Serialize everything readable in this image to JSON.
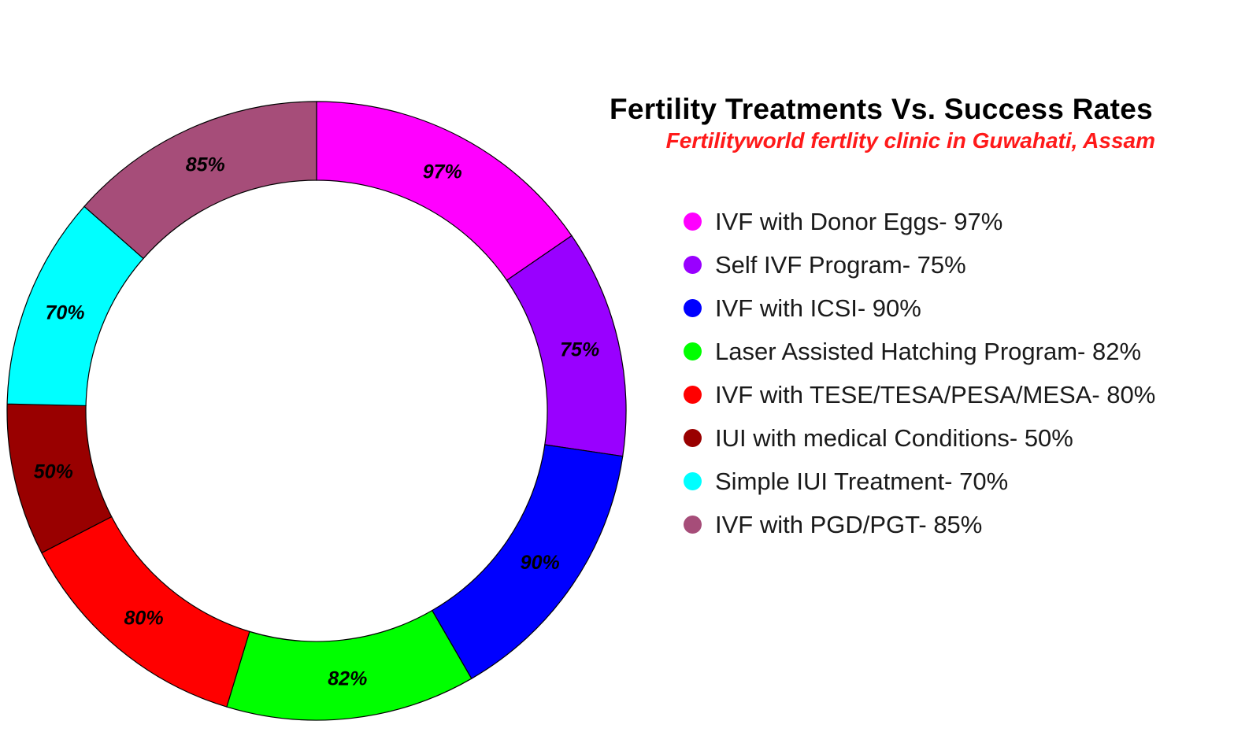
{
  "chart_data": {
    "type": "pie",
    "donut": true,
    "title": "Fertility Treatments Vs. Success Rates",
    "subtitle": "Fertilityworld fertlity clinic in Guwahati, Assam",
    "legend_position": "right",
    "categories": [
      "IVF with Donor Eggs",
      "Self IVF Program",
      "IVF with ICSI",
      "Laser Assisted Hatching Program",
      "IVF with TESE/TESA/PESA/MESA",
      "IUI with medical Conditions",
      "Simple IUI Treatment",
      "IVF with PGD/PGT"
    ],
    "values": [
      97,
      75,
      90,
      82,
      80,
      50,
      70,
      85
    ],
    "data_labels": [
      "97%",
      "75%",
      "90%",
      "82%",
      "80%",
      "50%",
      "70%",
      "85%"
    ],
    "legend_labels": [
      "IVF with Donor Eggs- 97%",
      "Self IVF Program- 75%",
      "IVF with ICSI- 90%",
      "Laser Assisted Hatching Program- 82%",
      "IVF with TESE/TESA/PESA/MESA- 80%",
      "IUI with medical Conditions- 50%",
      "Simple IUI Treatment- 70%",
      "IVF with PGD/PGT- 85%"
    ],
    "colors": [
      "#ff00ff",
      "#9900ff",
      "#0000ff",
      "#00ff00",
      "#ff0000",
      "#990000",
      "#00ffff",
      "#a64d79"
    ]
  }
}
